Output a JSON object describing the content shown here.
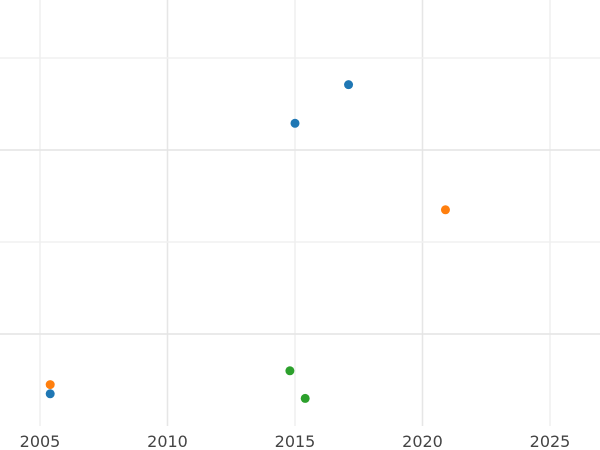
{
  "chart_data": {
    "type": "scatter",
    "title": "",
    "xlabel": "",
    "ylabel": "",
    "xlim": [
      2004.0,
      2026.9
    ],
    "ylim": [
      0,
      4.63
    ],
    "xticks": [
      2005,
      2010,
      2015,
      2020,
      2025
    ],
    "xtick_labels": [
      "2005",
      "2010",
      "2015",
      "2020",
      "2025"
    ],
    "yticks": [
      1,
      2,
      3,
      4
    ],
    "ytick_labels_shown": false,
    "grid": true,
    "series": [
      {
        "color": "#1f77b4",
        "points": [
          [
            2017.1,
            3.71
          ],
          [
            2015.0,
            3.29
          ],
          [
            2005.4,
            0.35
          ]
        ]
      },
      {
        "color": "#ff7f0e",
        "points": [
          [
            2020.9,
            2.35
          ],
          [
            2005.4,
            0.45
          ]
        ]
      },
      {
        "color": "#2ca02c",
        "points": [
          [
            2014.8,
            0.6
          ],
          [
            2015.4,
            0.3
          ]
        ]
      }
    ]
  }
}
